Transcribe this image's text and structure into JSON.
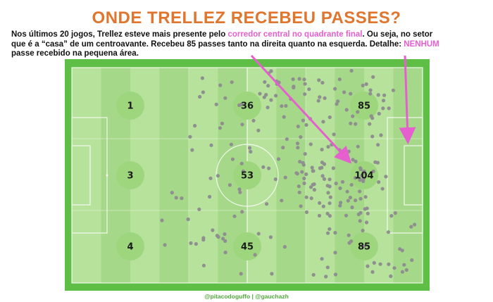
{
  "title": "ONDE TRELLEZ RECEBEU PASSES?",
  "description": {
    "part1": "Nos últimos 20 jogos, Trellez esteve mais presente pelo ",
    "highlight1": "corredor central no quadrante final",
    "part2": ". Ou seja, no setor que é a “casa” de um centroavante. Recebeu 85 passes tanto na direita quanto na esquerda. Detalhe: ",
    "highlight2": "NENHUM",
    "part3": " passe recebido na pequena área."
  },
  "zones": [
    {
      "label": "1",
      "row": 0,
      "col": 0
    },
    {
      "label": "36",
      "row": 0,
      "col": 1
    },
    {
      "label": "85",
      "row": 0,
      "col": 2
    },
    {
      "label": "3",
      "row": 1,
      "col": 0
    },
    {
      "label": "53",
      "row": 1,
      "col": 1
    },
    {
      "label": "104",
      "row": 1,
      "col": 2
    },
    {
      "label": "4",
      "row": 2,
      "col": 0
    },
    {
      "label": "45",
      "row": 2,
      "col": 1
    },
    {
      "label": "85",
      "row": 2,
      "col": 2
    }
  ],
  "colors": {
    "title": "#e0762d",
    "highlight": "#e55fcf",
    "pitch_light": "#b6e29b",
    "pitch_dark": "#a6d88a",
    "pitch_border": "#5fbe45",
    "zone_circle": "#9ed67e",
    "dot": "#8f8f8f",
    "arrow": "#e55fcf"
  },
  "credit": "@pitacodoguffo | @gauchazh"
}
